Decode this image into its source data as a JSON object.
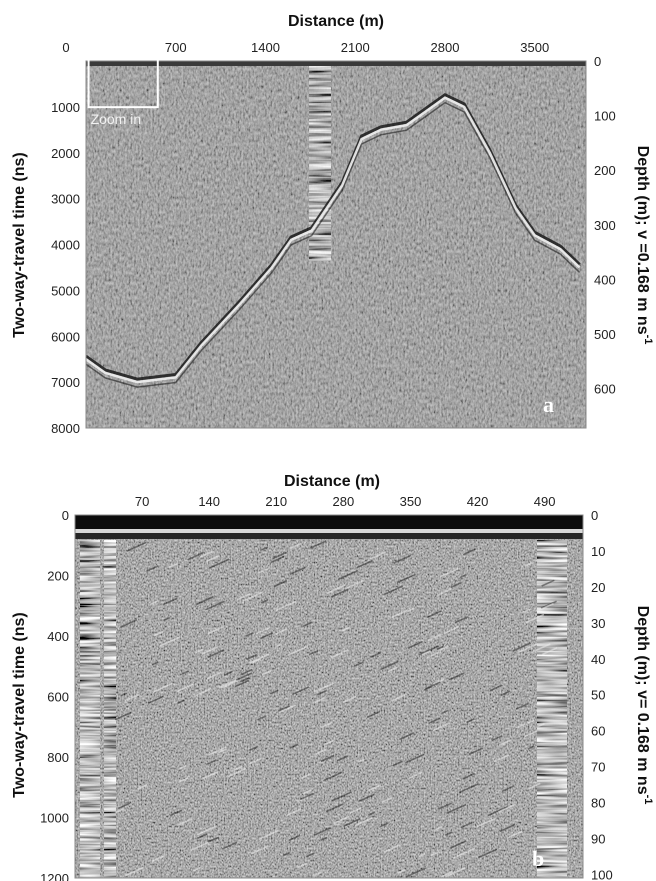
{
  "chart_data": [
    {
      "type": "heatmap",
      "panel_label": "a",
      "xlabel": "Distance (m)",
      "ylabel": "Two-way-travel time  (ns)",
      "ylabel_right": "Depth (m); v =0.168 m ns",
      "ylabel_right_sup": "-1",
      "xlim": [
        0,
        3900
      ],
      "ylim": [
        0,
        8000
      ],
      "y2lim": [
        0,
        672
      ],
      "x_ticks": [
        0,
        700,
        1400,
        2100,
        2800,
        3500
      ],
      "y_ticks": [
        1000,
        2000,
        3000,
        4000,
        5000,
        6000,
        7000,
        8000
      ],
      "y2_ticks": [
        0,
        100,
        200,
        300,
        400,
        500,
        600
      ],
      "annotation": {
        "text": "Zoom in",
        "x_range": [
          20,
          560
        ],
        "y_range": [
          0,
          1050
        ]
      },
      "reflector": {
        "x": [
          0,
          150,
          400,
          700,
          900,
          1200,
          1450,
          1600,
          1760,
          2000,
          2150,
          2300,
          2500,
          2650,
          2800,
          2950,
          3150,
          3350,
          3500,
          3700,
          3850
        ],
        "t": [
          6500,
          6800,
          7000,
          6900,
          6200,
          5300,
          4500,
          3900,
          3700,
          2700,
          1700,
          1500,
          1400,
          1100,
          800,
          1000,
          2000,
          3200,
          3800,
          4100,
          4500
        ]
      },
      "colors": {
        "background": "#8a8a8a",
        "highlight": "#f0f0f0",
        "shadow": "#1a1a1a"
      }
    },
    {
      "type": "heatmap",
      "panel_label": "b",
      "xlabel": "Distance (m)",
      "ylabel": "Two-way-travel time  (ns)",
      "ylabel_right": "Depth (m); v= 0.168  m ns",
      "ylabel_right_sup": "-1",
      "xlim": [
        0,
        530
      ],
      "ylim": [
        0,
        1200
      ],
      "y2lim": [
        0,
        101
      ],
      "x_ticks": [
        70,
        140,
        210,
        280,
        350,
        420,
        490
      ],
      "y_ticks": [
        0,
        200,
        400,
        600,
        800,
        1000,
        1200
      ],
      "y2_ticks": [
        0,
        10,
        20,
        30,
        40,
        50,
        60,
        70,
        80,
        90,
        100
      ],
      "colors": {
        "background": "#7a7a7a",
        "highlight": "#eeeeee",
        "shadow": "#111111"
      }
    }
  ]
}
